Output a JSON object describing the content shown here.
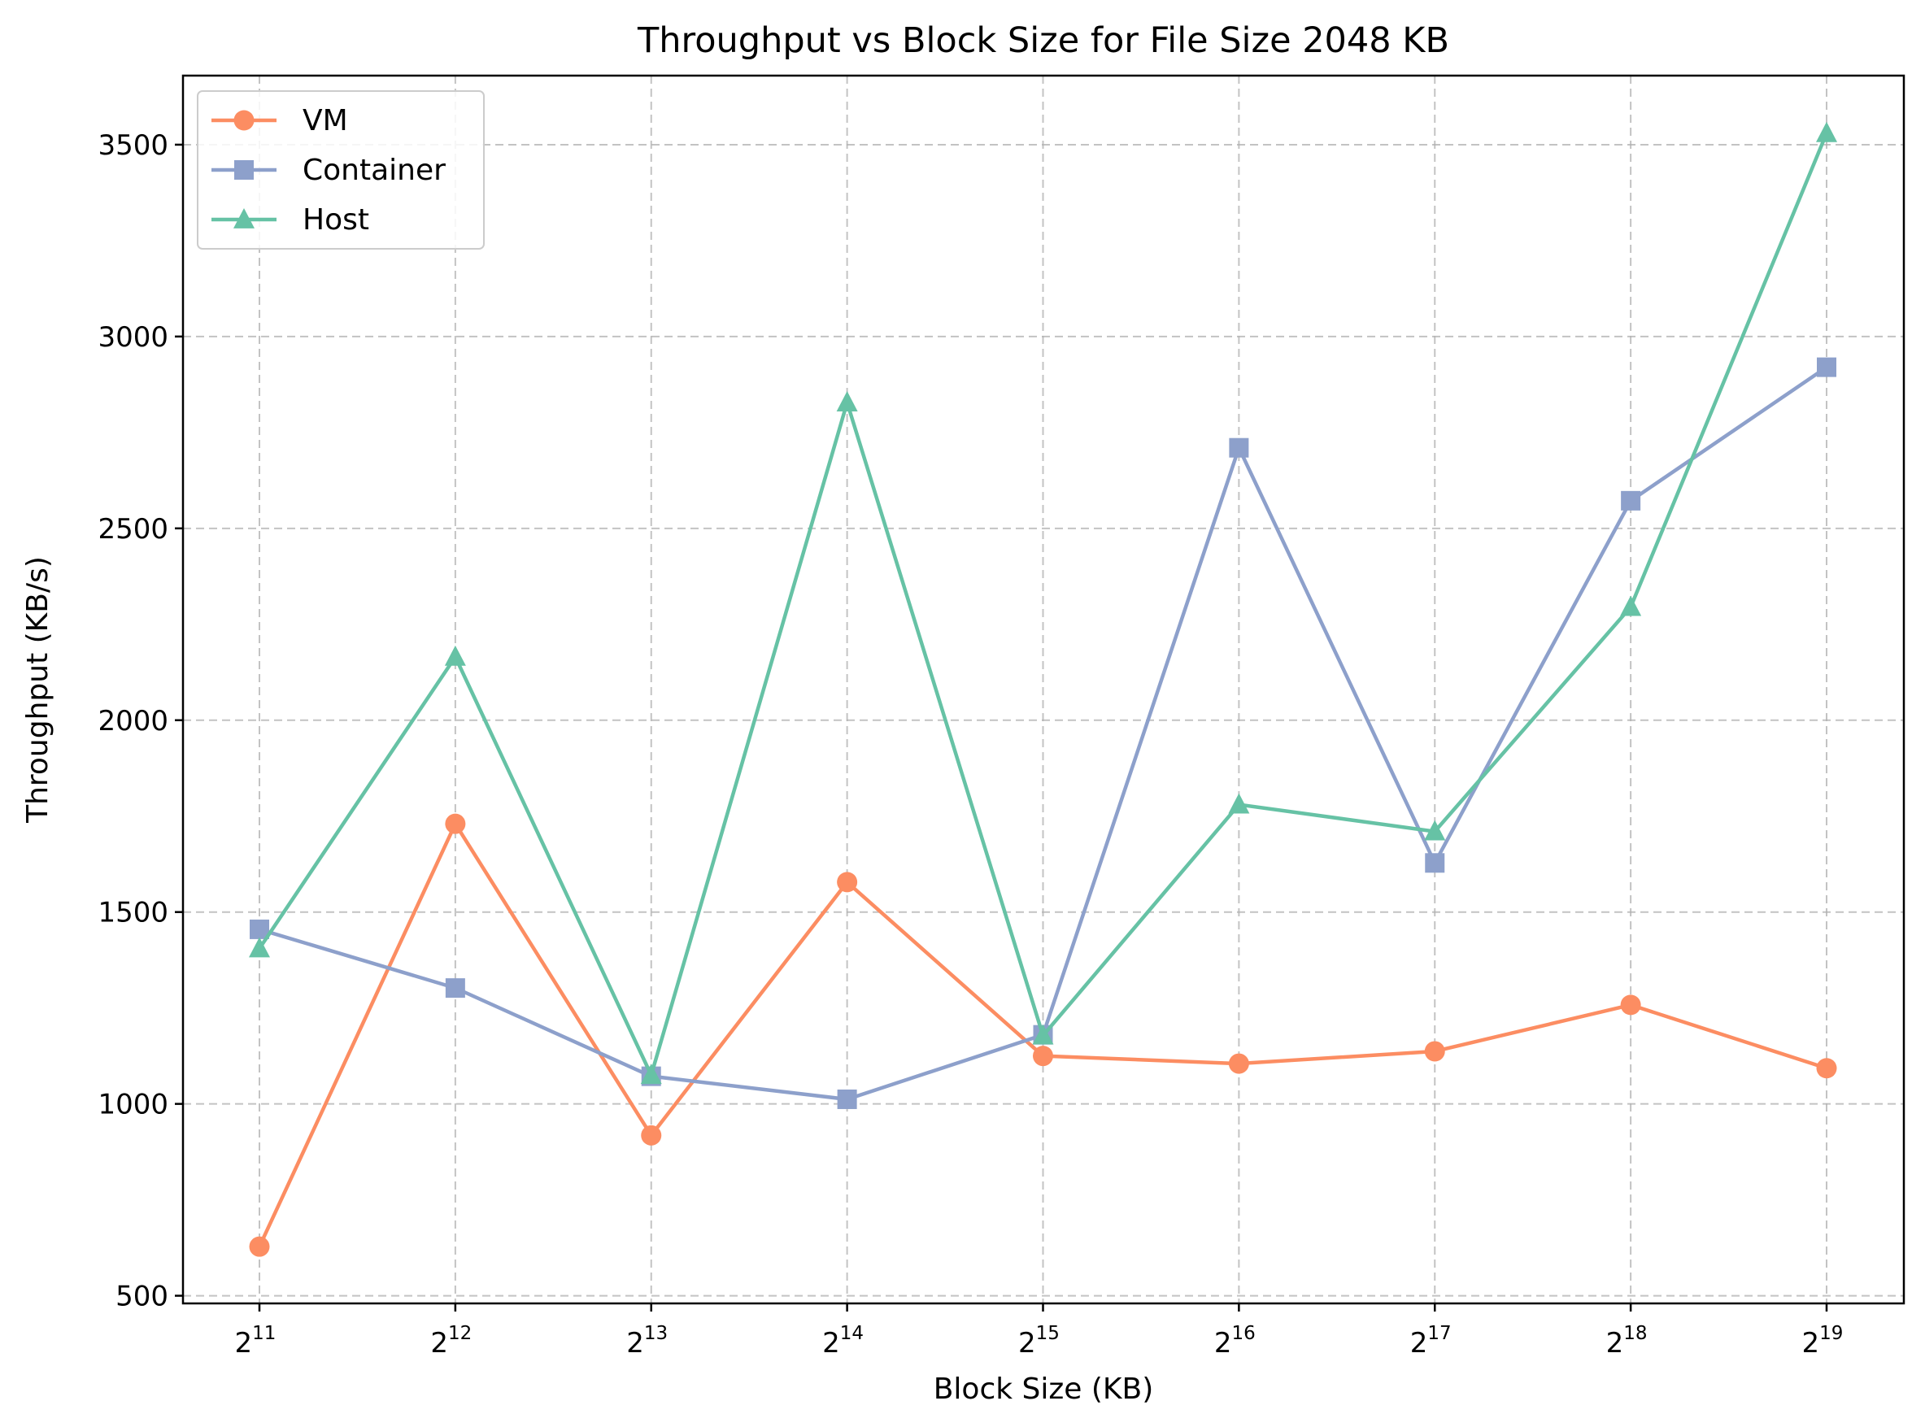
{
  "chart_data": {
    "type": "line",
    "title": "Throughput vs Block Size for File Size 2048 KB",
    "xlabel": "Block Size (KB)",
    "ylabel": "Throughput (KB/s)",
    "x_scale": "log2",
    "x": [
      2048,
      4096,
      8192,
      16384,
      32768,
      65536,
      131072,
      262144,
      524288
    ],
    "x_tick_labels": [
      {
        "base": "2",
        "exp": "11"
      },
      {
        "base": "2",
        "exp": "12"
      },
      {
        "base": "2",
        "exp": "13"
      },
      {
        "base": "2",
        "exp": "14"
      },
      {
        "base": "2",
        "exp": "15"
      },
      {
        "base": "2",
        "exp": "16"
      },
      {
        "base": "2",
        "exp": "17"
      },
      {
        "base": "2",
        "exp": "18"
      },
      {
        "base": "2",
        "exp": "19"
      }
    ],
    "y_ticks": [
      500,
      1000,
      1500,
      2000,
      2500,
      3000,
      3500
    ],
    "y_tick_labels": [
      "500",
      "1000",
      "1500",
      "2000",
      "2500",
      "3000",
      "3500"
    ],
    "ylim": [
      480,
      3680
    ],
    "grid": true,
    "legend_position": "upper-left",
    "series": [
      {
        "name": "VM",
        "color": "#fc8d62",
        "marker": "circle",
        "values": [
          628,
          1730,
          918,
          1578,
          1125,
          1105,
          1137,
          1258,
          1093
        ]
      },
      {
        "name": "Container",
        "color": "#8da0cb",
        "marker": "square",
        "values": [
          1455,
          1302,
          1072,
          1012,
          1180,
          2710,
          1628,
          2572,
          2920
        ]
      },
      {
        "name": "Host",
        "color": "#66c2a5",
        "marker": "triangle",
        "values": [
          1405,
          2165,
          1075,
          2828,
          1178,
          1780,
          1710,
          2295,
          3530
        ]
      }
    ]
  }
}
